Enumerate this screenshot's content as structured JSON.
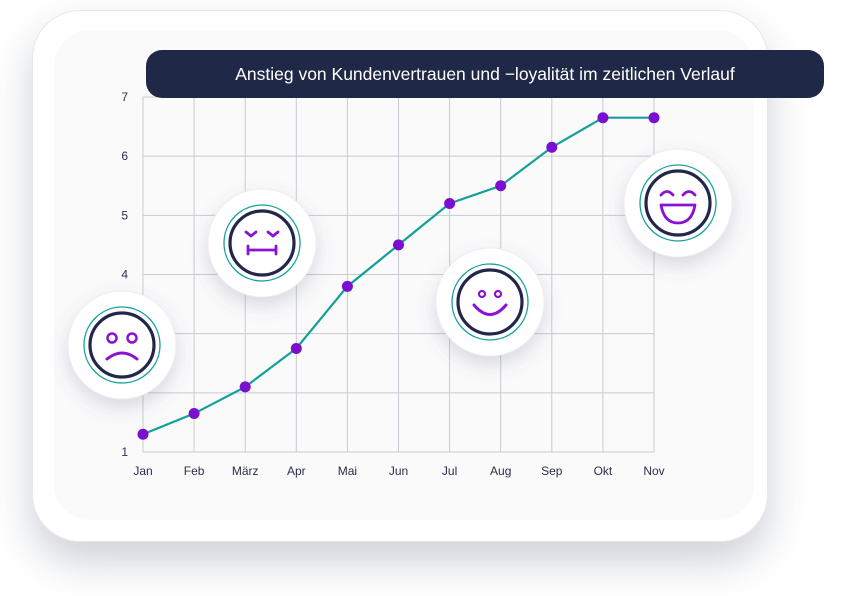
{
  "chart_data": {
    "type": "line",
    "title": "Anstieg von Kundenvertrauen und −loyalität im zeitlichen Verlauf",
    "categories": [
      "Jan",
      "Feb",
      "März",
      "Apr",
      "Mai",
      "Jun",
      "Jul",
      "Aug",
      "Sep",
      "Okt",
      "Nov"
    ],
    "values": [
      1.3,
      1.65,
      2.1,
      2.75,
      3.8,
      4.5,
      5.2,
      5.5,
      6.15,
      6.65,
      6.65
    ],
    "ylim": [
      1,
      7
    ],
    "yticks_labeled": [
      "1",
      "4",
      "5",
      "6",
      "7"
    ],
    "grid": true,
    "xlabel": "",
    "ylabel": "",
    "colors": {
      "line": "#14a09a",
      "marker": "#7a0fcf",
      "title_bg": "#1f2846",
      "grid": "#c9cbd3"
    },
    "decorations": [
      {
        "icon": "sad-face-icon",
        "category": "Jan"
      },
      {
        "icon": "grimace-face-icon",
        "category": "März"
      },
      {
        "icon": "smile-face-icon",
        "category": "Aug"
      },
      {
        "icon": "grin-face-icon",
        "category": "Okt"
      }
    ]
  }
}
